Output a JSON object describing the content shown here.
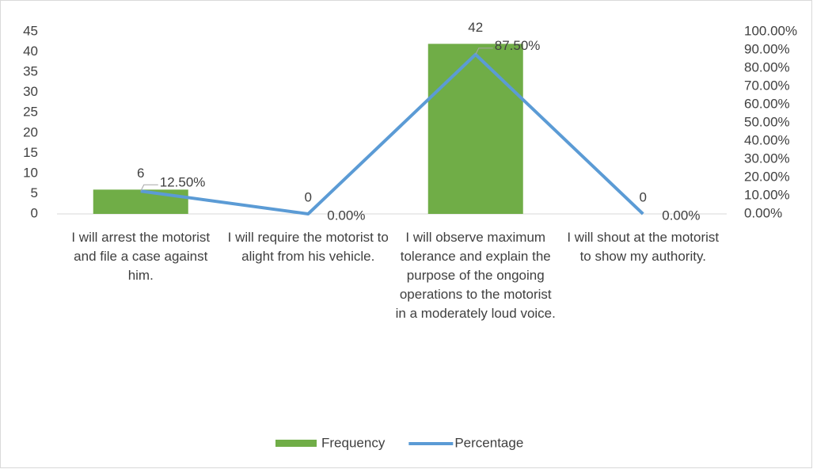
{
  "chart_data": {
    "type": "combo",
    "categories": [
      "I will arrest the motorist and file a case against him.",
      "I will require the motorist to alight from his vehicle.",
      "I will observe maximum tolerance and explain the purpose of the ongoing operations to the motorist in a moderately loud voice.",
      "I will shout at the motorist to show my authority."
    ],
    "series": [
      {
        "name": "Frequency",
        "type": "bar",
        "color": "#70ad47",
        "values": [
          6,
          0,
          42,
          0
        ]
      },
      {
        "name": "Percentage",
        "type": "line",
        "axis": "y2",
        "color": "#5b9bd5",
        "values": [
          12.5,
          0,
          87.5,
          0
        ],
        "value_labels": [
          "12.50%",
          "0.00%",
          "87.50%",
          "0.00%"
        ]
      }
    ],
    "ylim": [
      0,
      45
    ],
    "yticks": [
      0,
      5,
      10,
      15,
      20,
      25,
      30,
      35,
      40,
      45
    ],
    "y2lim": [
      0,
      100
    ],
    "y2ticks": [
      {
        "value": 0,
        "label": "0.00%"
      },
      {
        "value": 10,
        "label": "10.00%"
      },
      {
        "value": 20,
        "label": "20.00%"
      },
      {
        "value": 30,
        "label": "30.00%"
      },
      {
        "value": 40,
        "label": "40.00%"
      },
      {
        "value": 50,
        "label": "50.00%"
      },
      {
        "value": 60,
        "label": "60.00%"
      },
      {
        "value": 70,
        "label": "70.00%"
      },
      {
        "value": 80,
        "label": "80.00%"
      },
      {
        "value": 90,
        "label": "90.00%"
      },
      {
        "value": 100,
        "label": "100.00%"
      }
    ],
    "legend": "bottom"
  }
}
